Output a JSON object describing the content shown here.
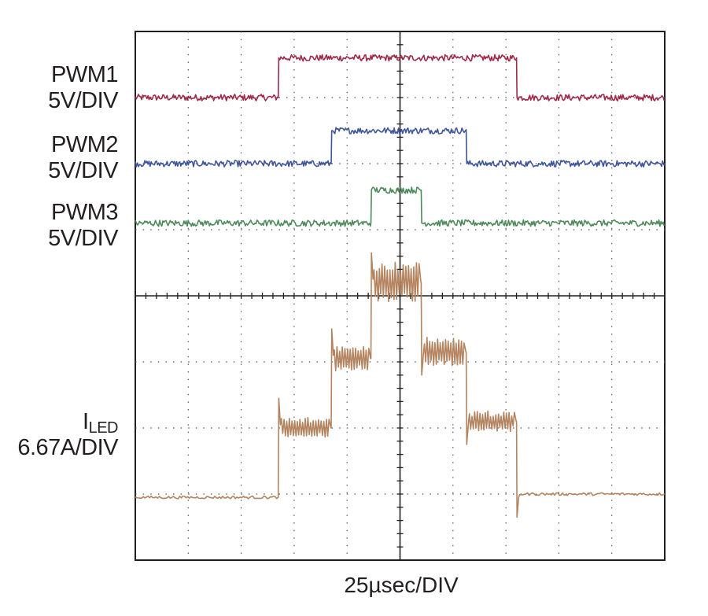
{
  "chart_data": {
    "type": "line",
    "title": "",
    "xlabel": "25µsec/DIV",
    "ylabel": "",
    "grid": true,
    "divisions": {
      "x": 10,
      "y": 8
    },
    "x_units": "div",
    "xlim": [
      0,
      10
    ],
    "ylim": [
      0,
      8
    ],
    "series": [
      {
        "label_lines": [
          "PWM1",
          "5V/DIV"
        ],
        "color": "#a0294a",
        "low": 7.0,
        "high": 7.6,
        "edges": [
          2.7,
          7.2
        ],
        "noise": 0.012
      },
      {
        "label_lines": [
          "PWM2",
          "5V/DIV"
        ],
        "color": "#3e559a",
        "low": 6.0,
        "high": 6.5,
        "edges": [
          3.7,
          6.25
        ],
        "noise": 0.012
      },
      {
        "label_lines": [
          "PWM3",
          "5V/DIV"
        ],
        "color": "#4e8a5c",
        "low": 5.1,
        "high": 5.6,
        "edges": [
          4.45,
          5.4
        ],
        "noise": 0.012
      },
      {
        "label_main": "I",
        "label_sub": "LED",
        "label_scale": "6.67A/DIV",
        "color": "#b3845f",
        "steps": [
          {
            "from": 0.0,
            "to": 2.7,
            "level": 0.95,
            "ripple": 0.0
          },
          {
            "from": 2.7,
            "to": 3.7,
            "level": 2.0,
            "ripple": 0.12
          },
          {
            "from": 3.7,
            "to": 4.45,
            "level": 3.05,
            "ripple": 0.15
          },
          {
            "from": 4.45,
            "to": 5.4,
            "level": 4.2,
            "ripple": 0.25
          },
          {
            "from": 5.4,
            "to": 6.25,
            "level": 3.15,
            "ripple": 0.18
          },
          {
            "from": 6.25,
            "to": 7.2,
            "level": 2.1,
            "ripple": 0.12
          },
          {
            "from": 7.2,
            "to": 10.0,
            "level": 1.0,
            "ripple": 0.0
          }
        ]
      }
    ]
  },
  "labels": {
    "pwm1_name": "PWM1",
    "pwm1_scale": "5V/DIV",
    "pwm2_name": "PWM2",
    "pwm2_scale": "5V/DIV",
    "pwm3_name": "PWM3",
    "pwm3_scale": "5V/DIV",
    "iled_main": "I",
    "iled_sub": "LED",
    "iled_scale": "6.67A/DIV"
  }
}
